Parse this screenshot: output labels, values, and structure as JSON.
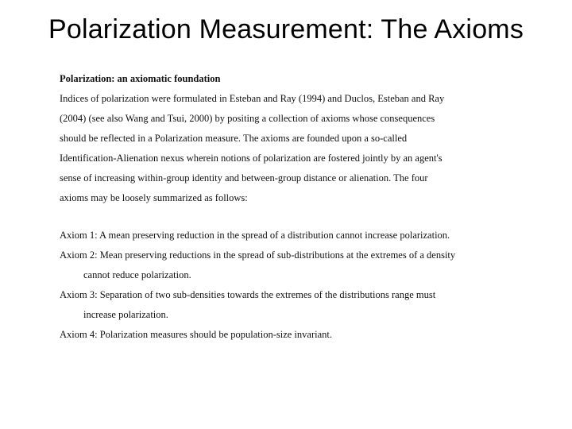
{
  "title": "Polarization Measurement: The Axioms",
  "heading": "Polarization: an axiomatic foundation",
  "intro_lines": [
    "Indices of polarization were formulated in Esteban and Ray (1994) and Duclos, Esteban and Ray",
    "(2004) (see also Wang and Tsui, 2000) by positing a collection of axioms whose consequences",
    "should be reflected in a Polarization measure. The axioms are founded upon a so-called",
    "Identification-Alienation nexus wherein notions of polarization are fostered jointly by an agent's",
    "sense of increasing within-group identity and between-group distance or alienation. The four",
    "axioms may be loosely summarized as follows:"
  ],
  "axioms": {
    "a1": "Axiom 1: A mean preserving reduction in the spread of a distribution cannot increase polarization.",
    "a2_l1": "Axiom 2: Mean preserving reductions in the spread of sub-distributions at the extremes of a density",
    "a2_l2": "cannot reduce polarization.",
    "a3_l1": "Axiom 3: Separation of two sub-densities towards the extremes of the distributions range must",
    "a3_l2": "increase polarization.",
    "a4": "Axiom 4: Polarization measures should be population-size invariant."
  }
}
